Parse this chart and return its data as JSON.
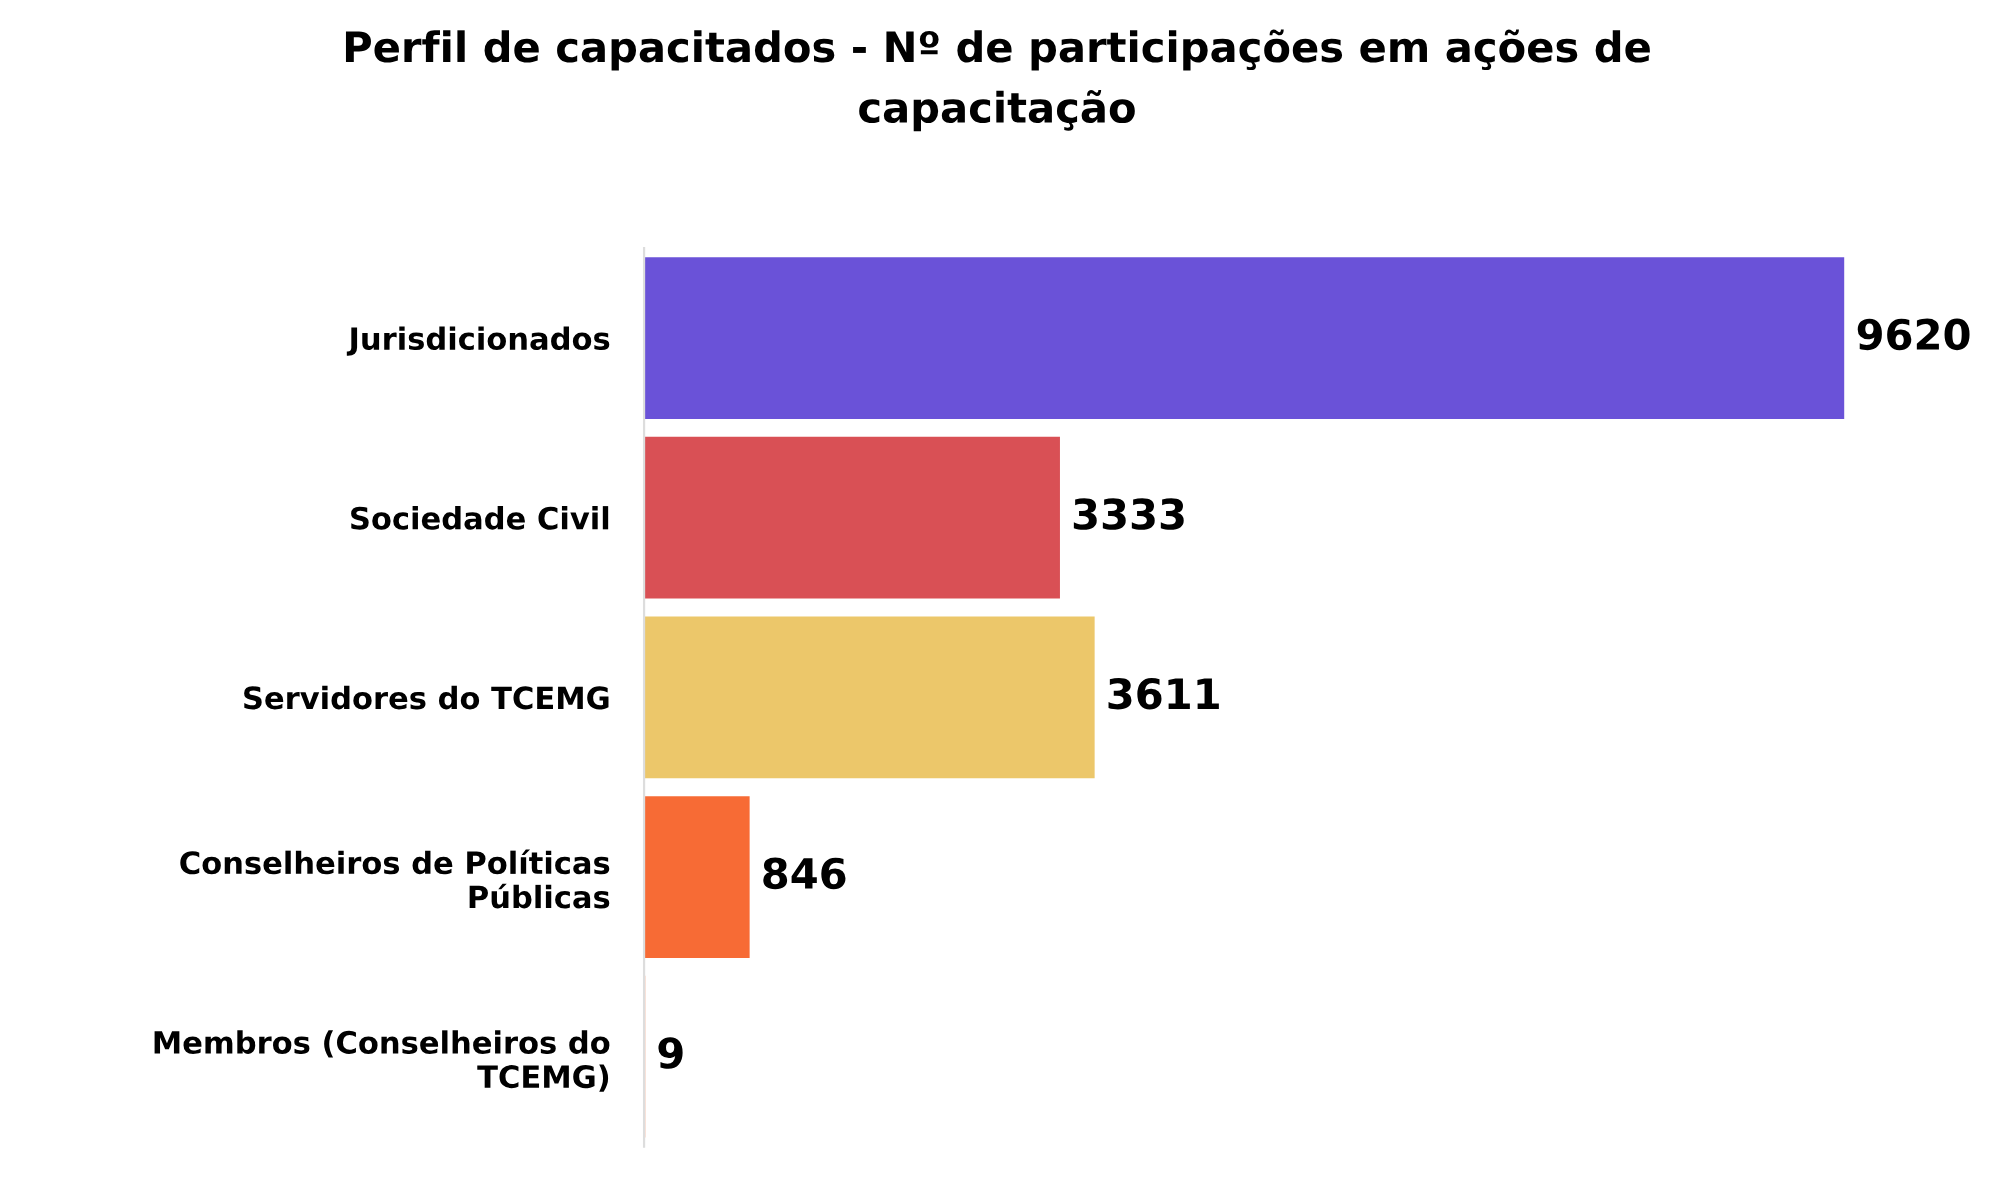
{
  "chart_data": {
    "type": "bar",
    "orientation": "horizontal",
    "title": "Perfil de capacitados - Nº de participações em ações de\ncapacitação",
    "categories": [
      "Jurisdicionados",
      "Sociedade Civil",
      "Servidores do TCEMG",
      "Conselheiros de Políticas\nPúblicas",
      "Membros (Conselheiros do\nTCEMG)"
    ],
    "values": [
      9620,
      3333,
      3611,
      846,
      9
    ],
    "colors": [
      "#6a52d8",
      "#d95055",
      "#ecc76a",
      "#f76b35",
      "#f76b35"
    ],
    "data_labels": true,
    "grid": false,
    "legend": false
  }
}
